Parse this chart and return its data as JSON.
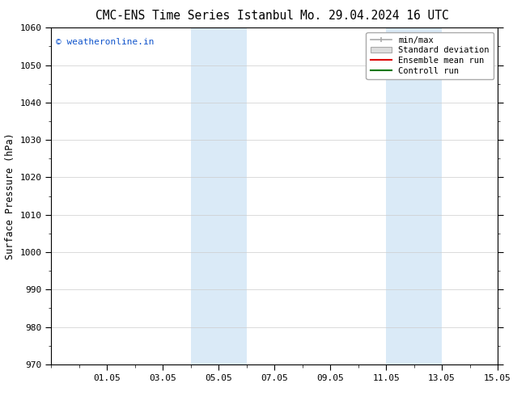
{
  "title_left": "CMC-ENS Time Series Istanbul",
  "title_right": "Mo. 29.04.2024 16 UTC",
  "ylabel": "Surface Pressure (hPa)",
  "ylim": [
    970,
    1060
  ],
  "yticks": [
    970,
    980,
    990,
    1000,
    1010,
    1020,
    1030,
    1040,
    1050,
    1060
  ],
  "xlim": [
    0,
    16
  ],
  "xtick_labels": [
    "01.05",
    "03.05",
    "05.05",
    "07.05",
    "09.05",
    "11.05",
    "13.05",
    "15.05"
  ],
  "xtick_positions": [
    2,
    4,
    6,
    8,
    10,
    12,
    14,
    16
  ],
  "shaded_bands": [
    {
      "x_start": 5,
      "x_end": 7
    },
    {
      "x_start": 12,
      "x_end": 14
    }
  ],
  "band_color": "#daeaf7",
  "watermark_text": "© weatheronline.in",
  "watermark_color": "#1155cc",
  "legend_entries": [
    {
      "label": "min/max",
      "style": "minmax"
    },
    {
      "label": "Standard deviation",
      "style": "stddev"
    },
    {
      "label": "Ensemble mean run",
      "color": "#dd0000",
      "style": "line"
    },
    {
      "label": "Controll run",
      "color": "#007700",
      "style": "line"
    }
  ],
  "background_color": "#ffffff",
  "grid_color": "#cccccc",
  "title_fontsize": 10.5,
  "watermark_fontsize": 8,
  "axis_label_fontsize": 8.5,
  "tick_fontsize": 8,
  "legend_fontsize": 7.5
}
